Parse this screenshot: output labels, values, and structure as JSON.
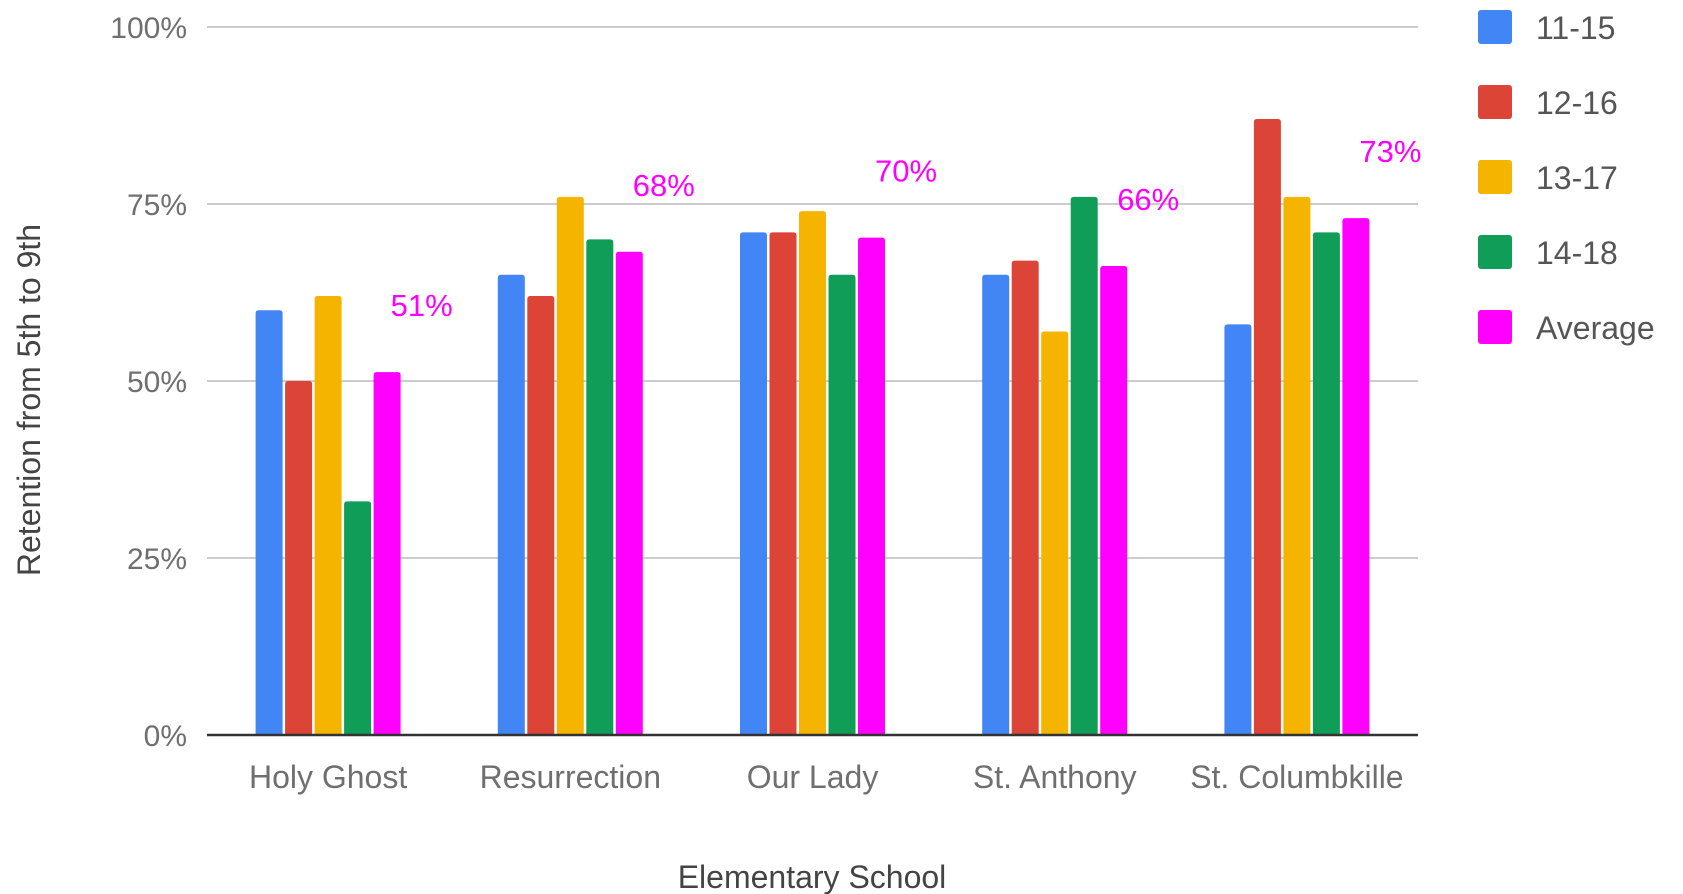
{
  "chart_data": {
    "type": "bar",
    "title": "",
    "xlabel": "Elementary School",
    "ylabel": "Retention from 5th to 9th",
    "ylim": [
      0,
      100
    ],
    "yticks": [
      "0%",
      "25%",
      "50%",
      "75%",
      "100%"
    ],
    "categories": [
      "Holy Ghost",
      "Resurrection",
      "Our Lady",
      "St. Anthony",
      "St. Columbkille"
    ],
    "series": [
      {
        "name": "11-15",
        "color": "#4285f4",
        "values": [
          60,
          65,
          71,
          65,
          58
        ]
      },
      {
        "name": "12-16",
        "color": "#db4437",
        "values": [
          50,
          62,
          71,
          67,
          87
        ]
      },
      {
        "name": "13-17",
        "color": "#f4b400",
        "values": [
          62,
          76,
          74,
          57,
          76
        ]
      },
      {
        "name": "14-18",
        "color": "#0f9d58",
        "values": [
          33,
          70,
          65,
          76,
          71
        ]
      },
      {
        "name": "Average",
        "color": "#ff00ff",
        "values": [
          51.25,
          68.25,
          70.25,
          66.25,
          73
        ]
      }
    ],
    "data_labels": [
      "51%",
      "68%",
      "70%",
      "66%",
      "73%"
    ],
    "legend_position": "right",
    "grid": true
  }
}
